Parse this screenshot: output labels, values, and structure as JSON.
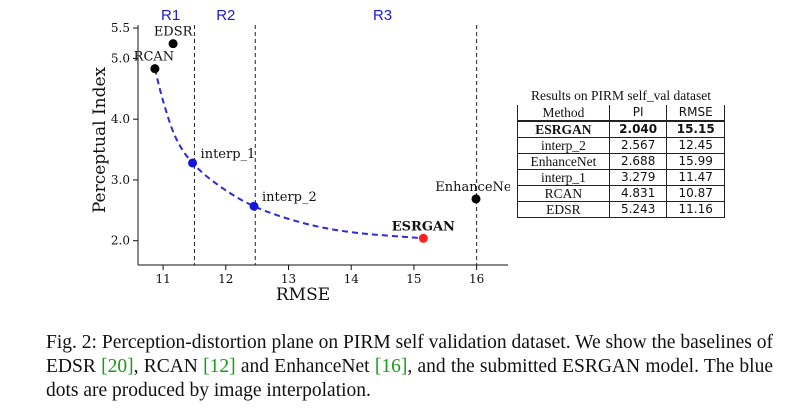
{
  "chart_data": {
    "type": "scatter",
    "xlabel": "RMSE",
    "ylabel": "Perceptual Index",
    "xlim": [
      10.6,
      16.5
    ],
    "ylim": [
      1.6,
      5.55
    ],
    "x_ticks": [
      "11",
      "12",
      "13",
      "14",
      "15",
      "16"
    ],
    "y_ticks": [
      "2.0",
      "3.0",
      "4.0",
      "5.0",
      "5.5"
    ],
    "regions": [
      {
        "label": "R1",
        "x_center": 11.12
      },
      {
        "label": "R2",
        "x_center": 12.0
      },
      {
        "label": "R3",
        "x_center": 14.5
      }
    ],
    "region_boundaries": [
      11.5,
      12.47,
      16.0
    ],
    "points": [
      {
        "label": "EDSR",
        "x": 11.16,
        "y": 5.243,
        "color": "#000000",
        "bold": false,
        "label_pos": "above"
      },
      {
        "label": "RCAN",
        "x": 10.87,
        "y": 4.831,
        "color": "#000000",
        "bold": false,
        "label_pos": "above-left"
      },
      {
        "label": "interp_1",
        "x": 11.47,
        "y": 3.279,
        "color": "#1515e0",
        "bold": false,
        "label_pos": "right"
      },
      {
        "label": "interp_2",
        "x": 12.45,
        "y": 2.567,
        "color": "#1515e0",
        "bold": false,
        "label_pos": "right"
      },
      {
        "label": "ESRGAN",
        "x": 15.15,
        "y": 2.04,
        "color": "#ff2020",
        "bold": true,
        "label_pos": "above"
      },
      {
        "label": "EnhanceNet",
        "x": 15.99,
        "y": 2.688,
        "color": "#000000",
        "bold": false,
        "label_pos": "above"
      }
    ],
    "curve": {
      "style": "dashed",
      "color": "#2a2ae8",
      "x": [
        10.87,
        11.0,
        11.2,
        11.47,
        11.9,
        12.45,
        13.2,
        14.0,
        15.15
      ],
      "y": [
        4.831,
        4.3,
        3.7,
        3.279,
        2.9,
        2.567,
        2.3,
        2.14,
        2.04
      ]
    }
  },
  "results_table": {
    "caption": "Results on PIRM self_val dataset",
    "headers": [
      "Method",
      "PI",
      "RMSE"
    ],
    "rows": [
      {
        "method": "ESRGAN",
        "pi": "2.040",
        "rmse": "15.15",
        "bold": true
      },
      {
        "method": "interp_2",
        "pi": "2.567",
        "rmse": "12.45",
        "bold": false
      },
      {
        "method": "EnhanceNet",
        "pi": "2.688",
        "rmse": "15.99",
        "bold": false
      },
      {
        "method": "interp_1",
        "pi": "3.279",
        "rmse": "11.47",
        "bold": false
      },
      {
        "method": "RCAN",
        "pi": "4.831",
        "rmse": "10.87",
        "bold": false
      },
      {
        "method": "EDSR",
        "pi": "5.243",
        "rmse": "11.16",
        "bold": false
      }
    ]
  },
  "figure_caption": {
    "label": "Fig. 2:",
    "text_1": " Perception-distortion plane on PIRM self validation dataset. We show the baselines of EDSR ",
    "ref_1": "[20]",
    "text_2": ", RCAN ",
    "ref_2": "[12]",
    "text_3": " and EnhanceNet ",
    "ref_3": "[16]",
    "text_4": ", and the submitted ESRGAN model. The blue dots are produced by image interpolation."
  }
}
